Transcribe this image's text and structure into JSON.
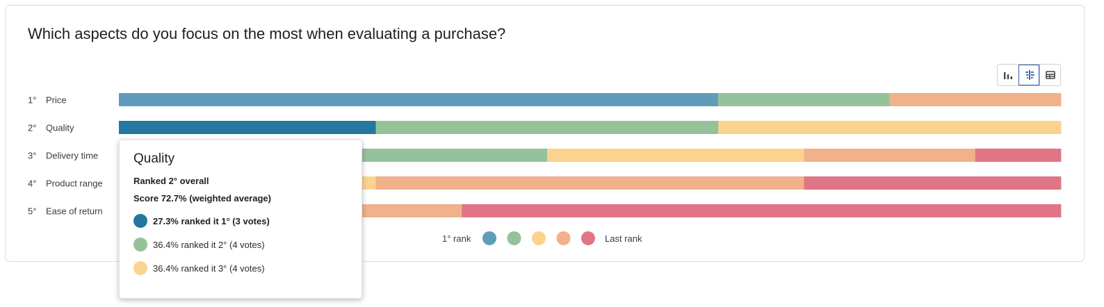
{
  "question": "Which aspects do you focus on the most when evaluating a purchase?",
  "view_buttons": [
    {
      "name": "bar-chart-view-icon",
      "active": false
    },
    {
      "name": "ranking-view-icon",
      "active": true
    },
    {
      "name": "table-view-icon",
      "active": false
    }
  ],
  "colors": [
    "#5f9cb9",
    "#96c29b",
    "#fcd28f",
    "#f0b18b",
    "#e07585"
  ],
  "chart_data": {
    "type": "bar",
    "orientation": "horizontal",
    "stacked": "100%",
    "rows": [
      {
        "rank": "1°",
        "label": "Price",
        "shares": [
          63.6,
          18.2,
          0,
          18.2,
          0
        ]
      },
      {
        "rank": "2°",
        "label": "Quality",
        "shares": [
          27.3,
          36.4,
          36.4,
          0,
          0
        ]
      },
      {
        "rank": "3°",
        "label": "Delivery time",
        "shares": [
          0,
          45.5,
          27.3,
          18.2,
          9.1
        ]
      },
      {
        "rank": "4°",
        "label": "Product range",
        "shares": [
          9.1,
          0,
          18.2,
          45.5,
          27.3
        ]
      },
      {
        "rank": "5°",
        "label": "Ease of return",
        "shares": [
          0,
          0,
          18.2,
          18.2,
          63.6
        ]
      }
    ],
    "highlighted_row": 1,
    "highlight_color": "#24779f",
    "legend": {
      "start_label": "1° rank",
      "end_label": "Last rank"
    }
  },
  "tooltip": {
    "title": "Quality",
    "ranked_line": "Ranked 2° overall",
    "score_line": "Score 72.7% (weighted average)",
    "items": [
      {
        "text": "27.3% ranked it 1° (3 votes)",
        "color": "#24779f",
        "bold": true
      },
      {
        "text": "36.4% ranked it 2° (4 votes)",
        "color": "#96c29b",
        "bold": false
      },
      {
        "text": "36.4% ranked it 3° (4 votes)",
        "color": "#fcd28f",
        "bold": false
      }
    ]
  }
}
